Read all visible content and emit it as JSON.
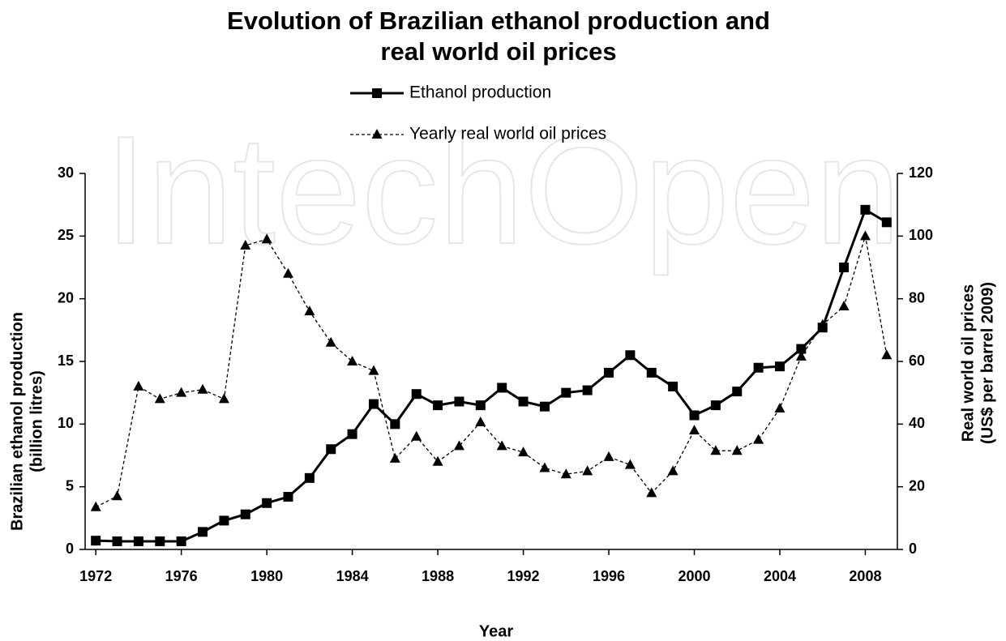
{
  "chart_data": {
    "type": "line",
    "watermark": "IntechOpen",
    "title": [
      "Evolution of Brazilian ethanol production and",
      "real world oil prices"
    ],
    "xlabel": "Year",
    "ylabel": [
      "Brazilian ethanol production",
      "(billion litres)"
    ],
    "y2label": [
      "Real world oil prices",
      "(US$ per barrel 2009)"
    ],
    "x": [
      1972,
      1973,
      1974,
      1975,
      1976,
      1977,
      1978,
      1979,
      1980,
      1981,
      1982,
      1983,
      1984,
      1985,
      1986,
      1987,
      1988,
      1989,
      1990,
      1991,
      1992,
      1993,
      1994,
      1995,
      1996,
      1997,
      1998,
      1999,
      2000,
      2001,
      2002,
      2003,
      2004,
      2005,
      2006,
      2007,
      2008,
      2009
    ],
    "xlim": [
      1971.5,
      2009.5
    ],
    "xticks": [
      1972,
      1976,
      1980,
      1984,
      1988,
      1992,
      1996,
      2000,
      2004,
      2008
    ],
    "ylim": [
      0,
      30
    ],
    "yticks": [
      0,
      5,
      10,
      15,
      20,
      25,
      30
    ],
    "y2lim": [
      0,
      120
    ],
    "y2ticks": [
      0,
      20,
      40,
      60,
      80,
      100,
      120
    ],
    "legend": "top",
    "series": [
      {
        "name": "Ethanol production",
        "color": "#000000",
        "style": "solid",
        "marker": "square",
        "values": [
          0.7,
          0.65,
          0.65,
          0.65,
          0.65,
          1.4,
          2.3,
          2.8,
          3.7,
          4.2,
          5.7,
          8.0,
          9.2,
          11.6,
          10.0,
          12.4,
          11.5,
          11.8,
          11.5,
          12.9,
          11.8,
          11.4,
          12.5,
          12.7,
          14.1,
          15.5,
          14.1,
          13.0,
          10.7,
          11.5,
          12.6,
          14.5,
          14.6,
          16.0,
          17.7,
          22.5,
          27.1,
          26.1
        ]
      },
      {
        "name": "Yearly real world oil prices",
        "color": "#000000",
        "style": "dashed",
        "marker": "triangle",
        "axis": "y2",
        "values": [
          13.5,
          17,
          52,
          48,
          50,
          51,
          48,
          97,
          99,
          88,
          76,
          66,
          60,
          57,
          29,
          36,
          28,
          33,
          40.6,
          33,
          31,
          26,
          24,
          25,
          29.5,
          27,
          18,
          25,
          38,
          31.5,
          31.5,
          35,
          45,
          61.6,
          71.7,
          77.6,
          100,
          62
        ]
      }
    ]
  }
}
